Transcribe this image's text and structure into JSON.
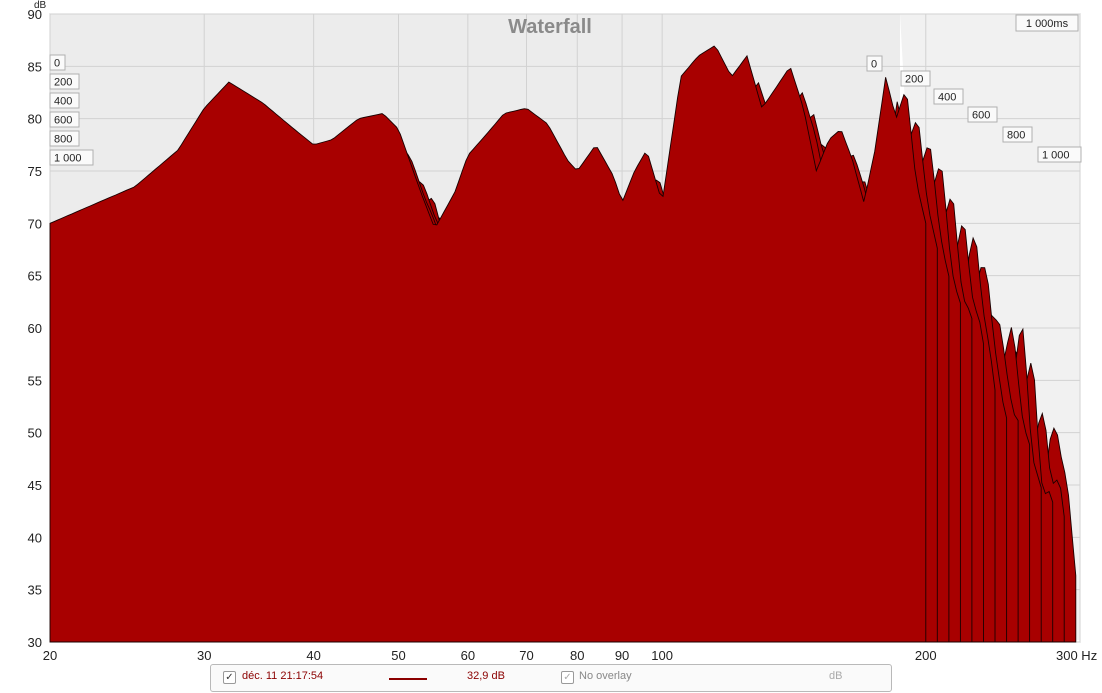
{
  "chart_data": {
    "type": "area",
    "title": "Waterfall",
    "y_unit": "dB",
    "x_unit": "Hz",
    "x_scale": "log",
    "xlim": [
      20,
      300
    ],
    "ylim": [
      30,
      90
    ],
    "x_ticks": [
      "20",
      "30",
      "40",
      "50",
      "60",
      "70",
      "80",
      "90",
      "100",
      "200",
      "300 Hz"
    ],
    "y_ticks": [
      "90",
      "85",
      "80",
      "75",
      "70",
      "65",
      "60",
      "55",
      "50",
      "45",
      "40",
      "35",
      "30"
    ],
    "time_labels_left": [
      "0",
      "200",
      "400",
      "600",
      "800",
      "1 000"
    ],
    "time_labels_right": [
      "0",
      "200",
      "400",
      "600",
      "800",
      "1 000"
    ],
    "time_span_label": "1 000ms",
    "fill_color": "#a80000",
    "grid": true,
    "series": [
      {
        "x": [
          20,
          22,
          25,
          28,
          30,
          32,
          35,
          38,
          40,
          42,
          45,
          48,
          50,
          53,
          55,
          58,
          60,
          63,
          66,
          70,
          74,
          78,
          80,
          84,
          88,
          90,
          93,
          96,
          100,
          105,
          110,
          115,
          120,
          125,
          130,
          135,
          140,
          145,
          150,
          155,
          160,
          165,
          170,
          175,
          180,
          185,
          190,
          195,
          200
        ],
        "values": [
          70,
          71.5,
          73.5,
          77,
          81,
          83.5,
          81.5,
          79,
          77.5,
          78,
          80,
          80.5,
          79,
          73,
          69.5,
          73,
          76.5,
          78.5,
          80.5,
          81,
          79.5,
          76,
          75,
          77.5,
          74.5,
          72,
          75,
          77,
          72,
          84,
          86,
          87,
          84,
          86,
          81,
          83,
          85,
          81,
          75,
          78,
          79,
          76,
          72,
          77,
          84,
          80,
          83,
          74,
          70
        ]
      }
    ]
  },
  "legend": {
    "checkbox_1": "✓",
    "date_label": "déc. 11 21:17:54",
    "value_label": "32,9 dB",
    "checkbox_2": "✓",
    "overlay_label": "No overlay",
    "unit_label": "dB"
  }
}
